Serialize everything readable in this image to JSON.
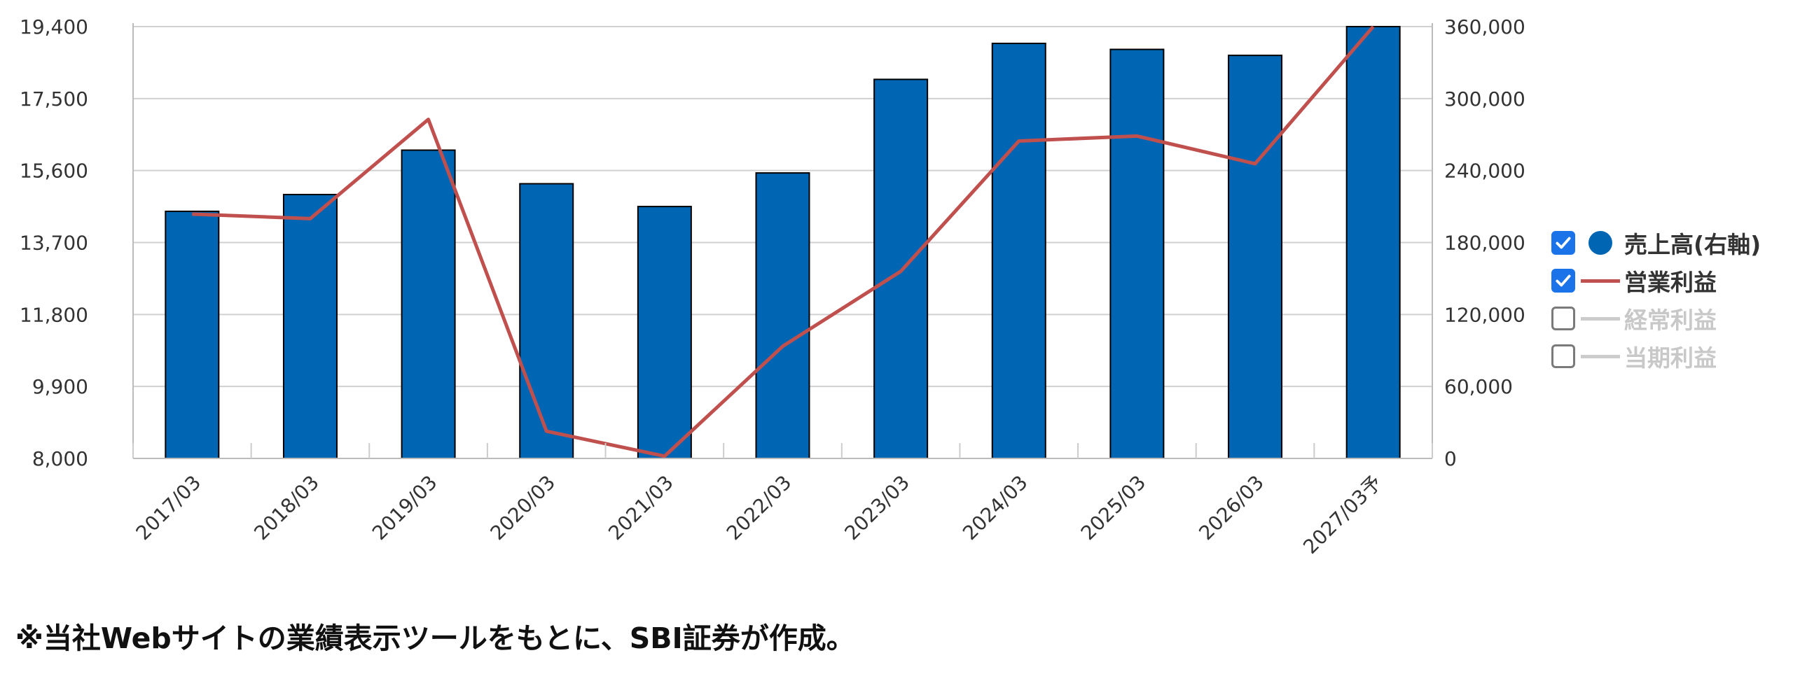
{
  "chart_data": {
    "type": "bar",
    "categories": [
      "2017/03",
      "2018/03",
      "2019/03",
      "2020/03",
      "2021/03",
      "2022/03",
      "2023/03",
      "2024/03",
      "2025/03",
      "2026/03",
      "2027/03予"
    ],
    "series": [
      {
        "name": "売上高(右軸)",
        "type": "bar",
        "axis": "right",
        "color": "#0066b3",
        "values": [
          206000,
          220000,
          257000,
          229000,
          210000,
          238000,
          316000,
          346000,
          341000,
          336000,
          360000
        ]
      },
      {
        "name": "営業利益",
        "type": "line",
        "axis": "left",
        "color": "#c0504d",
        "values": [
          14450,
          14330,
          16950,
          8720,
          8060,
          10960,
          12940,
          16380,
          16510,
          15780,
          19400
        ]
      }
    ],
    "yaxis_left": {
      "min": 8000,
      "max": 19400,
      "ticks": [
        "8,000",
        "9,900",
        "11,800",
        "13,700",
        "15,600",
        "17,500",
        "19,400"
      ]
    },
    "yaxis_right": {
      "min": 0,
      "max": 360000,
      "ticks": [
        "0",
        "60,000",
        "120,000",
        "180,000",
        "240,000",
        "300,000",
        "360,000"
      ]
    },
    "grid": true,
    "legend_position": "right",
    "title": "",
    "xlabel": "",
    "ylabel": ""
  },
  "legend": {
    "items": [
      {
        "label": "売上高(右軸)",
        "checked": true,
        "symbol": "dot",
        "color": "#0066b3",
        "text_color": "#333333"
      },
      {
        "label": "営業利益",
        "checked": true,
        "symbol": "line",
        "color": "#c0504d",
        "text_color": "#333333"
      },
      {
        "label": "経常利益",
        "checked": false,
        "symbol": "line",
        "color": "#cccccc",
        "text_color": "#c8c8c8"
      },
      {
        "label": "当期利益",
        "checked": false,
        "symbol": "line",
        "color": "#cccccc",
        "text_color": "#c8c8c8"
      }
    ]
  },
  "caption": "※当社Webサイトの業績表示ツールをもとに、SBI証券が作成。"
}
